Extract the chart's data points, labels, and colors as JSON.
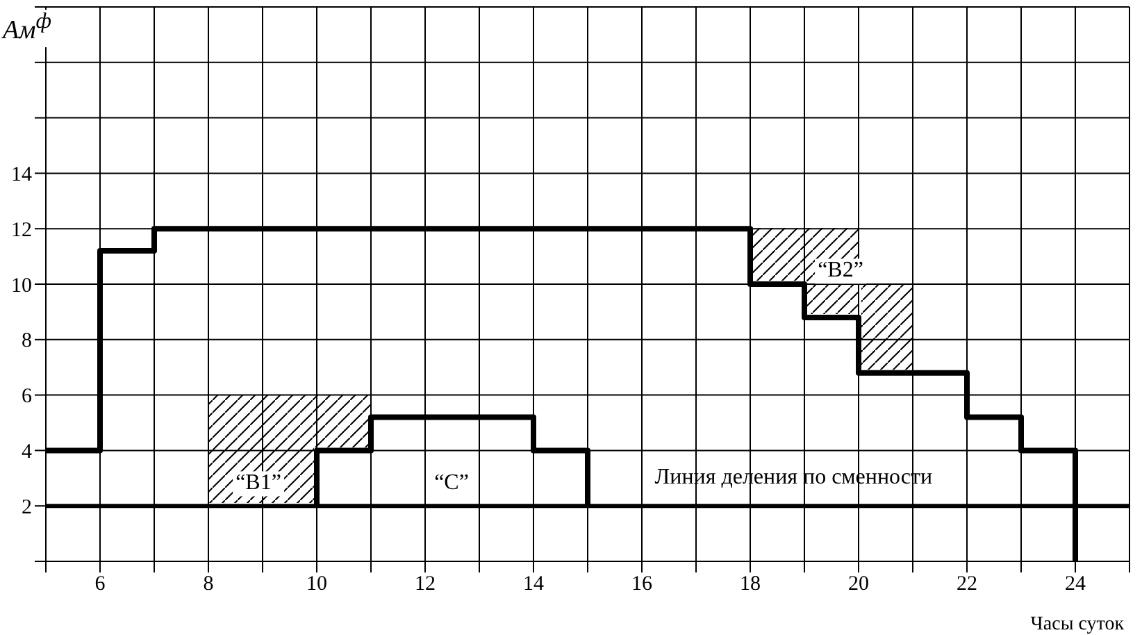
{
  "chart_data": {
    "type": "step",
    "xlabel": "Часы суток",
    "ylabel": "Ам$^{ф}$",
    "xlim": [
      5,
      25
    ],
    "ylim": [
      0,
      20
    ],
    "xticks": [
      {
        "value": 5,
        "label": null
      },
      6,
      {
        "value": 7,
        "label": null
      },
      8,
      {
        "value": 9,
        "label": null
      },
      10,
      {
        "value": 11,
        "label": null
      },
      12,
      {
        "value": 13,
        "label": null
      },
      14,
      {
        "value": 15,
        "label": null
      },
      16,
      {
        "value": 17,
        "label": null
      },
      18,
      {
        "value": 19,
        "label": null
      },
      20,
      {
        "value": 21,
        "label": null
      },
      22,
      {
        "value": 23,
        "label": null
      },
      24,
      {
        "value": 25,
        "label": null
      }
    ],
    "yticks": [
      {
        "value": 0,
        "label": null
      },
      2,
      4,
      6,
      8,
      10,
      12,
      14,
      {
        "value": 16,
        "label": null
      },
      {
        "value": 18,
        "label": null
      },
      {
        "value": 20,
        "label": null
      }
    ],
    "grid": true,
    "series": [
      {
        "color": "#000000",
        "x": [
          10,
          10,
          11,
          14,
          15
        ],
        "values": [
          2,
          4,
          5.2,
          4,
          2
        ]
      },
      {
        "color": "#000000",
        "x": [
          5,
          6,
          7,
          18,
          19,
          20,
          22,
          23,
          24
        ],
        "values": [
          4,
          11.2,
          12,
          10,
          8.8,
          6.8,
          5.2,
          4,
          0
        ]
      }
    ],
    "ref_lines": [
      {
        "axis": "y",
        "value": 2,
        "label": "Линия деления по сменности",
        "color": "#000000"
      }
    ],
    "annotations": [
      "“B1”",
      "“C”",
      "“B2”"
    ]
  }
}
